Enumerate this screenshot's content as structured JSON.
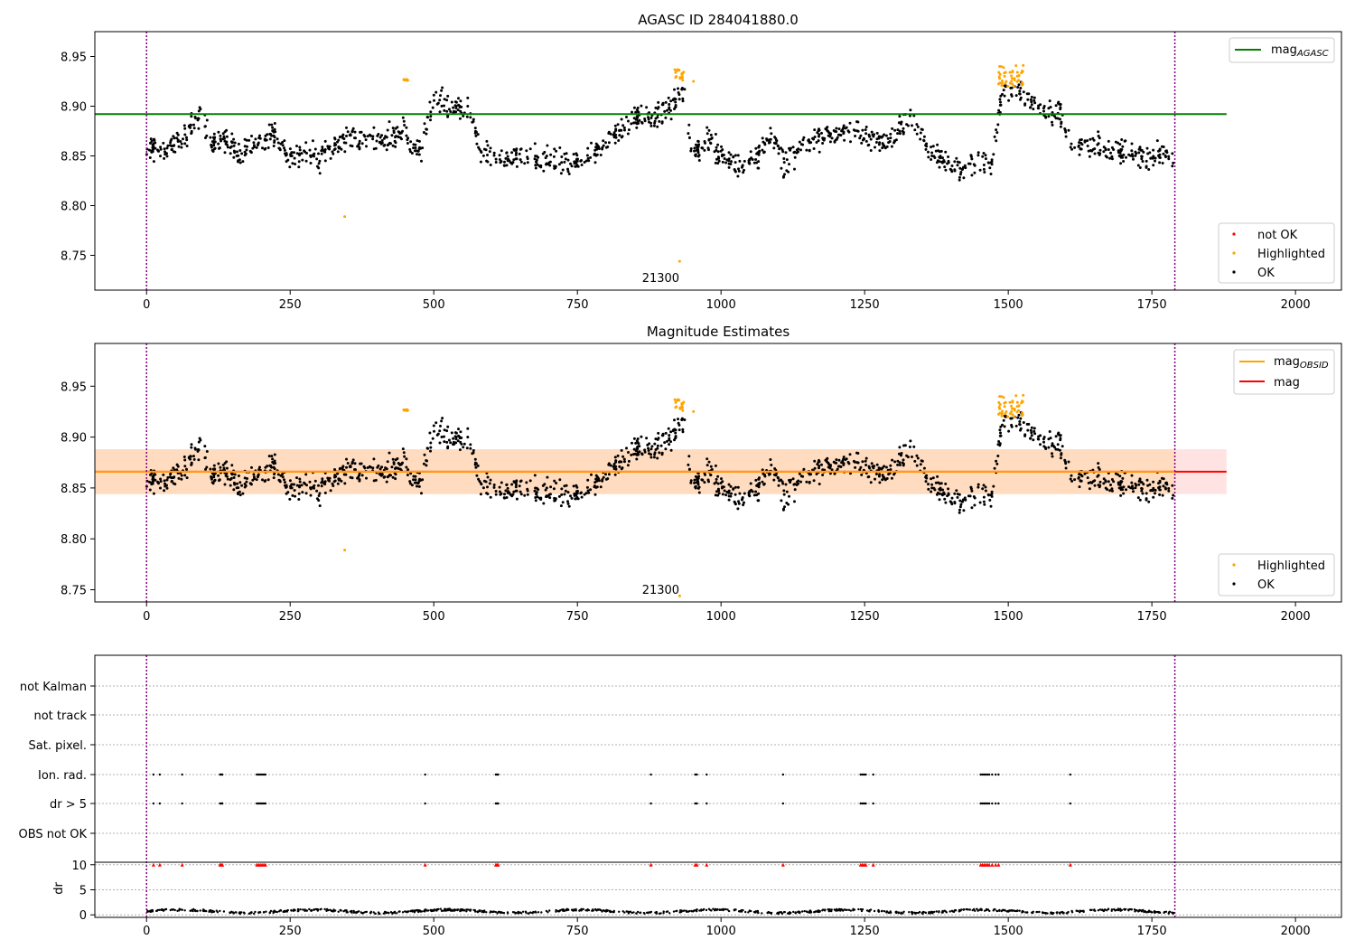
{
  "chart_data": [
    {
      "type": "scatter",
      "title": "AGASC ID 284041880.0",
      "xlim": [
        -90,
        2080
      ],
      "ylim": [
        8.715,
        8.975
      ],
      "xticks": [
        0,
        250,
        500,
        750,
        1000,
        1250,
        1500,
        1750,
        2000
      ],
      "yticks": [
        8.75,
        8.8,
        8.85,
        8.9,
        8.95
      ],
      "grid": false,
      "obs_boundaries": [
        0,
        1790
      ],
      "obsid_label": {
        "text": "21300",
        "x": 895
      },
      "mag_agasc": 8.892,
      "mag_line_x": [
        -90,
        1880
      ],
      "mean_mag": 8.866,
      "band": [
        8.844,
        8.888
      ],
      "highlight_groups": [
        {
          "x0": 447,
          "x1": 455,
          "y0": 8.926,
          "y1": 8.927
        },
        {
          "x0": 918,
          "x1": 935,
          "y0": 8.925,
          "y1": 8.937
        },
        {
          "x0": 1482,
          "x1": 1528,
          "y0": 8.92,
          "y1": 8.942
        }
      ],
      "highlight_outliers": [
        {
          "x": 345,
          "y": 8.789
        },
        {
          "x": 928,
          "y": 8.744
        },
        {
          "x": 952,
          "y": 8.925
        }
      ],
      "series": [
        {
          "name": "not OK",
          "color": "#ff0000",
          "marker": "point",
          "points": []
        },
        {
          "name": "Highlighted",
          "color": "#ffa500",
          "marker": "point"
        },
        {
          "name": "OK",
          "color": "#000000",
          "marker": "point"
        }
      ],
      "legend": {
        "upper": [
          {
            "label": "mag",
            "sub": "AGASC",
            "color": "#008000"
          }
        ],
        "lower": [
          "not OK",
          "Highlighted",
          "OK"
        ]
      },
      "legend_placement": "upper right, lower right"
    },
    {
      "type": "scatter",
      "title": "Magnitude Estimates",
      "xlim": [
        -90,
        2080
      ],
      "ylim": [
        8.738,
        8.992
      ],
      "xticks": [
        0,
        250,
        500,
        750,
        1000,
        1250,
        1500,
        1750,
        2000
      ],
      "yticks": [
        8.75,
        8.8,
        8.85,
        8.9,
        8.95
      ],
      "grid": false,
      "obs_boundaries": [
        0,
        1790
      ],
      "obsid_label": {
        "text": "21300",
        "x": 895
      },
      "mag_obsid": 8.866,
      "mag": 8.866,
      "band": [
        8.844,
        8.888
      ],
      "band_x": [
        -90,
        1880
      ],
      "legend": {
        "upper": [
          {
            "label": "mag",
            "sub": "OBSID",
            "color": "#ffa500"
          },
          {
            "label": "mag",
            "sub": "",
            "color": "#ff0000"
          }
        ],
        "lower": [
          "Highlighted",
          "OK"
        ]
      },
      "legend_placement": "upper right, lower right"
    },
    {
      "type": "scatter",
      "title": "",
      "xlim": [
        -90,
        2080
      ],
      "xticks": [
        0,
        250,
        500,
        750,
        1000,
        1250,
        1500,
        1750,
        2000
      ],
      "flag_rows": [
        "not Kalman",
        "not track",
        "Sat. pixel.",
        "Ion. rad.",
        "dr > 5",
        "OBS not OK"
      ],
      "flag_events": {
        "Ion. rad.": [
          12,
          23,
          62,
          128,
          130,
          132,
          192,
          195,
          198,
          201,
          204,
          207,
          485,
          608,
          610,
          612,
          878,
          955,
          958,
          975,
          1108,
          1243,
          1246,
          1249,
          1252,
          1265,
          1452,
          1455,
          1458,
          1461,
          1464,
          1467,
          1472,
          1478,
          1483,
          1608
        ],
        "dr > 5": [
          12,
          23,
          62,
          128,
          130,
          132,
          192,
          195,
          198,
          201,
          204,
          207,
          485,
          608,
          610,
          612,
          878,
          955,
          958,
          975,
          1108,
          1243,
          1246,
          1249,
          1252,
          1265,
          1452,
          1455,
          1458,
          1461,
          1464,
          1467,
          1472,
          1478,
          1483,
          1608
        ]
      },
      "dr": {
        "ylabel": "dr",
        "ylim": [
          -0.5,
          10.5
        ],
        "yticks": [
          0,
          5,
          10
        ],
        "clipped_value": 10,
        "typical": 0.7
      },
      "grid": "dotted horizontal"
    }
  ]
}
